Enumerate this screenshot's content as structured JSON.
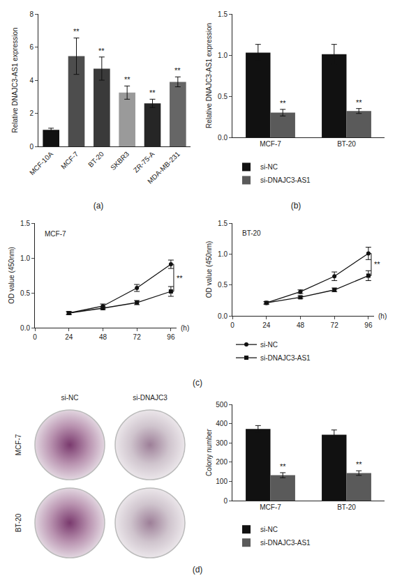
{
  "panels": [
    "(a)",
    "(b)",
    "(c)",
    "(d)"
  ],
  "chart_data": [
    {
      "type": "bar",
      "categories": [
        "MCF-10A",
        "MCF-7",
        "BT-20",
        "SKBR3",
        "ZR-75-A",
        "MDA-MB-231"
      ],
      "values": [
        1.0,
        5.45,
        4.7,
        3.25,
        2.6,
        3.9
      ],
      "errors": [
        0.1,
        1.1,
        0.7,
        0.4,
        0.25,
        0.3
      ],
      "colors": [
        "#111111",
        "#4d4d4d",
        "#3a3a3a",
        "#9a9a9a",
        "#262626",
        "#666666"
      ],
      "y_label": "Relative DNAJC3-AS1 expression",
      "ylim": [
        0,
        8
      ],
      "yticks": [
        0,
        2,
        4,
        6,
        8
      ],
      "significance": [
        {
          "category": "MCF-7",
          "text": "**"
        },
        {
          "category": "BT-20",
          "text": "**"
        },
        {
          "category": "SKBR3",
          "text": "**"
        },
        {
          "category": "ZR-75-A",
          "text": "**"
        },
        {
          "category": "MDA-MB-231",
          "text": "**"
        }
      ]
    },
    {
      "type": "bar",
      "categories": [
        "MCF-7",
        "BT-20"
      ],
      "series": [
        {
          "name": "si-NC",
          "color": "#111111",
          "values": [
            1.03,
            1.01
          ],
          "errors": [
            0.1,
            0.12
          ]
        },
        {
          "name": "si-DNAJC3-AS1",
          "color": "#5a5a5a",
          "values": [
            0.3,
            0.32
          ],
          "errors": [
            0.04,
            0.03
          ],
          "significance": [
            "**",
            "**"
          ]
        }
      ],
      "y_label": "Relative DNAJC3-AS1 expression",
      "ylim": [
        0,
        1.5
      ],
      "yticks": [
        {
          "value": 0,
          "label": "0.0"
        },
        {
          "value": 0.5,
          "label": "0.5"
        },
        {
          "value": 1,
          "label": "1.0"
        },
        {
          "value": 1.5,
          "label": "1.5"
        }
      ],
      "legend": "bottom"
    },
    {
      "type": "line",
      "inner_label": "MCF-7",
      "x": [
        24,
        48,
        72,
        96
      ],
      "series": [
        {
          "name": "si-NC",
          "color": "#111111",
          "marker": "circle",
          "values": [
            0.21,
            0.31,
            0.57,
            0.91
          ],
          "errors": [
            0.02,
            0.03,
            0.05,
            0.06
          ]
        },
        {
          "name": "si-DNAJC3-AS1",
          "color": "#111111",
          "marker": "square",
          "values": [
            0.21,
            0.28,
            0.36,
            0.52
          ],
          "errors": [
            0.02,
            0.02,
            0.03,
            0.07
          ]
        }
      ],
      "significance": "**",
      "x_label": "(h)",
      "y_label": "OD value (450nm)",
      "xlim": [
        0,
        100
      ],
      "xticks": [
        0,
        24,
        48,
        72,
        96
      ],
      "ylim": [
        0,
        1.5
      ],
      "yticks": [
        {
          "value": 0,
          "label": "0.0"
        },
        {
          "value": 0.5,
          "label": "0.5"
        },
        {
          "value": 1,
          "label": "1.0"
        },
        {
          "value": 1.5,
          "label": "1.5"
        }
      ]
    },
    {
      "type": "line",
      "inner_label": "BT-20",
      "x": [
        24,
        48,
        72,
        96
      ],
      "series": [
        {
          "name": "si-NC",
          "color": "#111111",
          "marker": "circle",
          "values": [
            0.21,
            0.39,
            0.64,
            1.01
          ],
          "errors": [
            0.02,
            0.03,
            0.07,
            0.1
          ]
        },
        {
          "name": "si-DNAJC3-AS1",
          "color": "#111111",
          "marker": "square",
          "values": [
            0.21,
            0.3,
            0.42,
            0.65
          ],
          "errors": [
            0.02,
            0.02,
            0.03,
            0.08
          ]
        }
      ],
      "significance": "**",
      "x_label": "(h)",
      "y_label": "OD value (450nm)",
      "xlim": [
        0,
        100
      ],
      "xticks": [
        0,
        24,
        48,
        72,
        96
      ],
      "ylim": [
        0,
        1.5
      ],
      "yticks": [
        {
          "value": 0,
          "label": "0.0"
        },
        {
          "value": 0.5,
          "label": "0.5"
        },
        {
          "value": 1,
          "label": "1.0"
        },
        {
          "value": 1.5,
          "label": "1.5"
        }
      ],
      "legend": "bottom"
    },
    {
      "type": "bar",
      "categories": [
        "MCF-7",
        "BT-20"
      ],
      "series": [
        {
          "name": "si-NC",
          "color": "#111111",
          "values": [
            372,
            342
          ],
          "errors": [
            18,
            25
          ]
        },
        {
          "name": "si-DNAJC3-AS1",
          "color": "#5a5a5a",
          "values": [
            132,
            143
          ],
          "errors": [
            13,
            12
          ],
          "significance": [
            "**",
            "**"
          ]
        }
      ],
      "y_label": "Colony number",
      "ylim": [
        0,
        500
      ],
      "yticks": [
        0,
        100,
        200,
        300,
        400,
        500
      ],
      "legend": "bottom"
    }
  ],
  "plates": {
    "columns": [
      "si-NC",
      "si-DNAJC3"
    ],
    "rows": [
      "MCF-7",
      "BT-20"
    ]
  }
}
